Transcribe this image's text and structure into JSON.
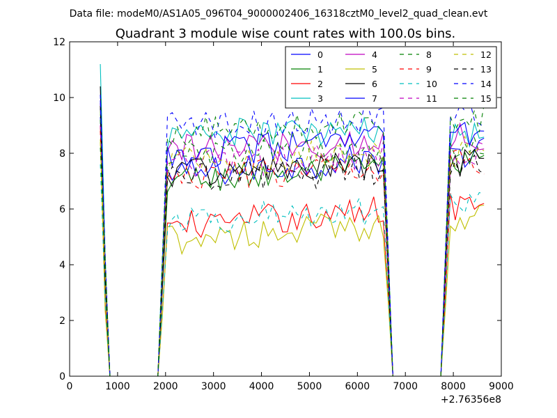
{
  "chart_data": {
    "type": "line",
    "suptitle": "Data file: modeM0/AS1A05_096T04_9000002406_16318cztM0_level2_quad_clean.evt",
    "title": "Quadrant 3 module wise count rates with 100.0s bins.",
    "xlabel": "",
    "ylabel": "",
    "x_offset_label": "+2.76356e8",
    "xlim": [
      0,
      9000
    ],
    "ylim": [
      0,
      12
    ],
    "xticks": [
      "0",
      "1000",
      "2000",
      "3000",
      "4000",
      "5000",
      "6000",
      "7000",
      "8000",
      "9000"
    ],
    "yticks": [
      "0",
      "2",
      "4",
      "6",
      "8",
      "10",
      "12"
    ],
    "grid": false,
    "legend_position": "top-right",
    "legend_columns": 4,
    "palette": [
      "#0000ff",
      "#008000",
      "#ff0000",
      "#00bfbf",
      "#bf00bf",
      "#bfbf00",
      "#000000"
    ],
    "x_start": 640,
    "x_step": 100,
    "series": [
      {
        "name": "0",
        "base": 7.2,
        "trend": 0.9,
        "start": 9.3
      },
      {
        "name": "1",
        "base": 7.0,
        "trend": 0.7,
        "start": 9.6
      },
      {
        "name": "2",
        "base": 5.4,
        "trend": 0.8,
        "start": 9.0
      },
      {
        "name": "3",
        "base": 8.7,
        "trend": 0.1,
        "start": 11.2
      },
      {
        "name": "4",
        "base": 8.1,
        "trend": 0.5,
        "start": 9.8
      },
      {
        "name": "5",
        "base": 4.9,
        "trend": 0.8,
        "start": 8.5
      },
      {
        "name": "6",
        "base": 7.3,
        "trend": 0.3,
        "start": 10.4
      },
      {
        "name": "7",
        "base": 7.9,
        "trend": 0.9,
        "start": 9.9
      },
      {
        "name": "8",
        "base": 7.9,
        "trend": 0.3,
        "start": 9.2
      },
      {
        "name": "9",
        "base": 7.1,
        "trend": 0.6,
        "start": 8.8
      },
      {
        "name": "10",
        "base": 5.6,
        "trend": 0.5,
        "start": 7.6
      },
      {
        "name": "11",
        "base": 7.6,
        "trend": 0.5,
        "start": 9.0
      },
      {
        "name": "12",
        "base": 7.7,
        "trend": 0.4,
        "start": 8.4
      },
      {
        "name": "13",
        "base": 7.1,
        "trend": 0.4,
        "start": 9.7
      },
      {
        "name": "14",
        "base": 8.9,
        "trend": 0.5,
        "start": 10.1
      },
      {
        "name": "15",
        "base": 8.7,
        "trend": 0.6,
        "start": 8.2
      }
    ],
    "segments": [
      {
        "type": "drop",
        "from": 640,
        "to": 840
      },
      {
        "type": "zero",
        "from": 840,
        "to": 1840
      },
      {
        "type": "rise",
        "from": 1840,
        "to": 2040
      },
      {
        "type": "plateau",
        "from": 2040,
        "to": 6540
      },
      {
        "type": "drop",
        "from": 6540,
        "to": 6740
      },
      {
        "type": "zero",
        "from": 6740,
        "to": 7740
      },
      {
        "type": "rise",
        "from": 7740,
        "to": 7940
      },
      {
        "type": "plateau",
        "from": 7940,
        "to": 8640
      }
    ]
  }
}
